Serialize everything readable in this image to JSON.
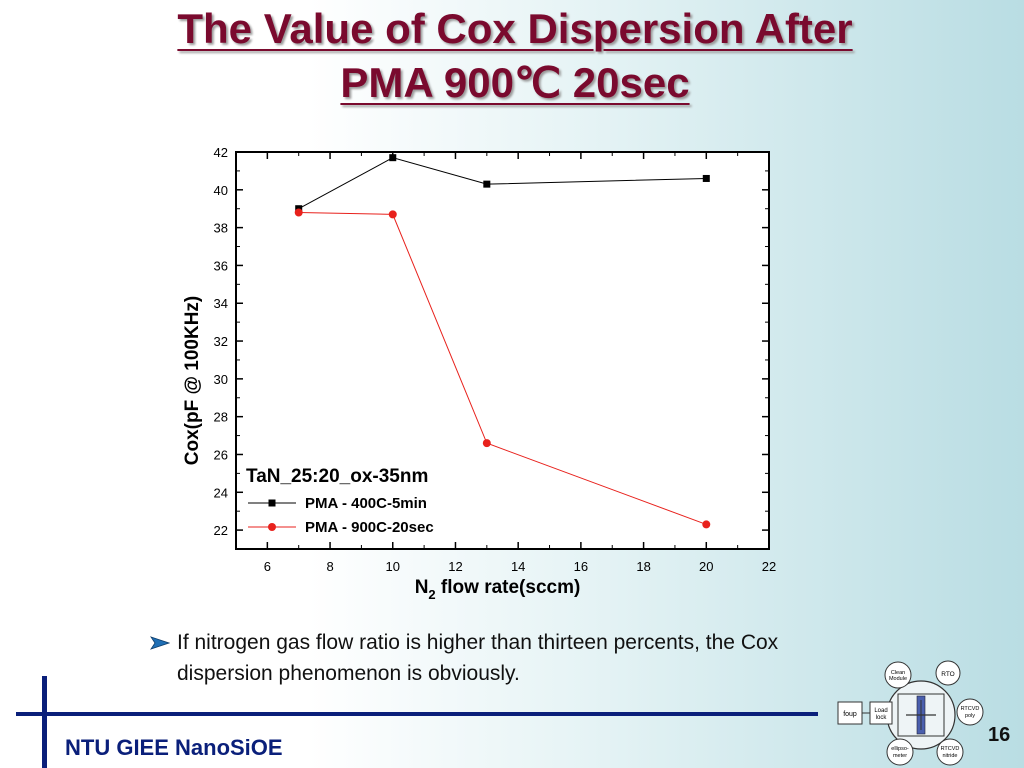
{
  "slide": {
    "title_line1": "The Value of Cox Dispersion After",
    "title_line2": "PMA 900℃ 20sec",
    "bullet": "If nitrogen gas flow ratio is higher than thirteen percents, the Cox dispersion phenomenon is obviously.",
    "footer": "NTU GIEE NanoSiOE",
    "page_number": "16",
    "colors": {
      "title": "#7a0a2e",
      "footer": "#0a1f7a",
      "bullet_arrow": "#1f6fb5"
    }
  },
  "chart_data": {
    "type": "line",
    "title": "",
    "legend_title": "TaN_25:20_ox-35nm",
    "legend_position": "bottom-left",
    "xlabel_main": "N",
    "xlabel_sub": "2",
    "xlabel_rest": " flow rate(sccm)",
    "ylabel": "Cox(pF @ 100KHz)",
    "xlim": [
      5,
      22
    ],
    "ylim": [
      21,
      42
    ],
    "xticks": [
      6,
      8,
      10,
      12,
      14,
      16,
      18,
      20,
      22
    ],
    "yticks": [
      22,
      24,
      26,
      28,
      30,
      32,
      34,
      36,
      38,
      40,
      42
    ],
    "grid": false,
    "series": [
      {
        "name": "PMA - 400C-5min",
        "marker": "square",
        "color": "#000000",
        "x": [
          7,
          10,
          13,
          20
        ],
        "y": [
          39.0,
          41.7,
          40.3,
          40.6
        ]
      },
      {
        "name": "PMA - 900C-20sec",
        "marker": "circle",
        "color": "#e8211c",
        "x": [
          7,
          10,
          13,
          20
        ],
        "y": [
          38.8,
          38.7,
          26.6,
          22.3
        ]
      }
    ]
  },
  "lab_diagram": {
    "foup": "foup",
    "load_lock": [
      "Load",
      "lock"
    ],
    "clean_module": [
      "Clean",
      "Module"
    ],
    "rto": "RTO",
    "rtcvd_poly": [
      "RTCVD",
      "poly"
    ],
    "ellipsometer": [
      "ellipso-",
      "meter"
    ],
    "rtcvd_nitride": [
      "RTCVD",
      "nitride"
    ]
  }
}
